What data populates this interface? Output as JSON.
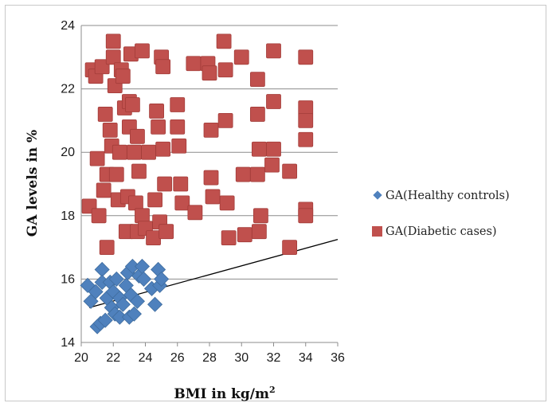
{
  "chart_data": {
    "type": "scatter",
    "xlabel": "BMI in kg/m",
    "xlabel_sup": "2",
    "ylabel": "GA levels in %",
    "xlim": [
      20,
      36
    ],
    "ylim": [
      14,
      24
    ],
    "xticks": [
      "20",
      "22",
      "24",
      "26",
      "28",
      "30",
      "32",
      "34",
      "36"
    ],
    "yticks": [
      "14",
      "16",
      "18",
      "20",
      "22",
      "24"
    ],
    "grid": "horizontal",
    "legend_position": "right",
    "colors": {
      "healthy": "#4f81bd",
      "diabetic": "#c0504d",
      "trendline": "#000000",
      "grid": "#8c8c8c"
    },
    "series": [
      {
        "name": "GA(Healthy controls)",
        "marker": "diamond",
        "points": [
          [
            20.4,
            15.8
          ],
          [
            20.6,
            15.3
          ],
          [
            20.9,
            15.6
          ],
          [
            21.0,
            14.5
          ],
          [
            21.2,
            14.6
          ],
          [
            21.3,
            16.3
          ],
          [
            21.3,
            15.9
          ],
          [
            21.5,
            14.7
          ],
          [
            21.6,
            15.4
          ],
          [
            21.8,
            15.9
          ],
          [
            21.9,
            15.1
          ],
          [
            22.0,
            15.6
          ],
          [
            22.1,
            14.9
          ],
          [
            22.2,
            16.0
          ],
          [
            22.4,
            15.4
          ],
          [
            22.4,
            14.8
          ],
          [
            22.6,
            15.2
          ],
          [
            22.8,
            15.8
          ],
          [
            22.9,
            16.2
          ],
          [
            23.0,
            14.8
          ],
          [
            23.1,
            15.5
          ],
          [
            23.2,
            16.4
          ],
          [
            23.3,
            14.9
          ],
          [
            23.5,
            15.3
          ],
          [
            23.6,
            16.1
          ],
          [
            23.8,
            16.4
          ],
          [
            23.9,
            16.0
          ],
          [
            24.4,
            15.7
          ],
          [
            24.6,
            15.2
          ],
          [
            24.8,
            16.3
          ],
          [
            24.9,
            15.8
          ],
          [
            25.0,
            16.0
          ]
        ]
      },
      {
        "name": "GA(Diabetic cases)",
        "marker": "square",
        "points": [
          [
            20.5,
            18.3
          ],
          [
            20.7,
            22.6
          ],
          [
            20.9,
            22.4
          ],
          [
            21.0,
            19.8
          ],
          [
            21.1,
            18.0
          ],
          [
            21.3,
            22.7
          ],
          [
            21.4,
            18.8
          ],
          [
            21.5,
            21.2
          ],
          [
            21.6,
            19.3
          ],
          [
            21.6,
            17.0
          ],
          [
            21.8,
            20.7
          ],
          [
            21.9,
            20.2
          ],
          [
            22.0,
            23.5
          ],
          [
            22.0,
            23.0
          ],
          [
            22.1,
            22.1
          ],
          [
            22.2,
            19.3
          ],
          [
            22.3,
            18.5
          ],
          [
            22.4,
            20.0
          ],
          [
            22.5,
            22.6
          ],
          [
            22.6,
            22.4
          ],
          [
            22.7,
            21.4
          ],
          [
            22.8,
            17.5
          ],
          [
            22.9,
            18.6
          ],
          [
            23.0,
            21.6
          ],
          [
            23.0,
            20.8
          ],
          [
            23.1,
            23.1
          ],
          [
            23.2,
            21.5
          ],
          [
            23.3,
            20.0
          ],
          [
            23.4,
            18.4
          ],
          [
            23.5,
            20.5
          ],
          [
            23.5,
            17.5
          ],
          [
            23.6,
            19.4
          ],
          [
            23.8,
            23.2
          ],
          [
            23.8,
            18.0
          ],
          [
            24.0,
            17.6
          ],
          [
            24.2,
            20.0
          ],
          [
            24.5,
            17.3
          ],
          [
            24.6,
            18.5
          ],
          [
            24.7,
            21.3
          ],
          [
            24.8,
            20.8
          ],
          [
            24.9,
            17.8
          ],
          [
            25.0,
            23.0
          ],
          [
            25.1,
            22.7
          ],
          [
            25.1,
            20.1
          ],
          [
            25.2,
            19.0
          ],
          [
            25.3,
            17.5
          ],
          [
            26.0,
            21.5
          ],
          [
            26.0,
            20.8
          ],
          [
            26.1,
            20.2
          ],
          [
            26.2,
            19.0
          ],
          [
            26.3,
            18.4
          ],
          [
            27.0,
            22.8
          ],
          [
            27.1,
            18.1
          ],
          [
            27.9,
            22.8
          ],
          [
            28.0,
            22.5
          ],
          [
            28.1,
            20.7
          ],
          [
            28.1,
            19.2
          ],
          [
            28.2,
            18.6
          ],
          [
            28.9,
            23.5
          ],
          [
            29.0,
            22.6
          ],
          [
            29.0,
            21.0
          ],
          [
            29.1,
            18.4
          ],
          [
            29.2,
            17.3
          ],
          [
            30.0,
            23.0
          ],
          [
            30.1,
            19.3
          ],
          [
            30.2,
            17.4
          ],
          [
            31.0,
            22.3
          ],
          [
            31.0,
            21.2
          ],
          [
            31.1,
            20.1
          ],
          [
            31.0,
            19.3
          ],
          [
            31.2,
            18.0
          ],
          [
            31.1,
            17.5
          ],
          [
            32.0,
            23.2
          ],
          [
            32.0,
            21.6
          ],
          [
            32.0,
            20.1
          ],
          [
            31.9,
            19.6
          ],
          [
            33.0,
            19.4
          ],
          [
            33.0,
            17.0
          ],
          [
            34.0,
            23.0
          ],
          [
            34.0,
            21.4
          ],
          [
            34.0,
            21.0
          ],
          [
            34.0,
            20.4
          ],
          [
            34.0,
            18.2
          ],
          [
            34.0,
            18.0
          ]
        ]
      }
    ],
    "trendline": {
      "x": [
        20.5,
        36
      ],
      "y": [
        15.1,
        17.25
      ]
    }
  }
}
